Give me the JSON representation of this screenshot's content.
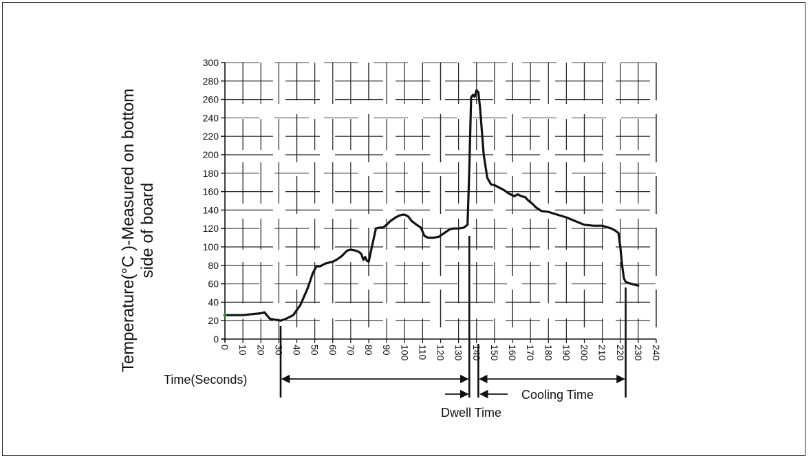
{
  "chart_data": {
    "type": "line",
    "ylabel_line1": "Temperature(°C )-Measured on bottom",
    "ylabel_line2": "side of board",
    "xlabel": "Time(Seconds)",
    "xlim": [
      0,
      240
    ],
    "ylim": [
      0,
      300
    ],
    "xticks": [
      0,
      10,
      20,
      30,
      40,
      50,
      60,
      70,
      80,
      90,
      100,
      110,
      120,
      130,
      140,
      150,
      160,
      170,
      180,
      190,
      200,
      210,
      220,
      230,
      240
    ],
    "yticks": [
      0,
      20,
      40,
      60,
      80,
      100,
      120,
      140,
      160,
      180,
      200,
      220,
      240,
      260,
      280,
      300
    ],
    "grid": true,
    "series": [
      {
        "color": "#111111",
        "x": [
          0,
          5,
          10,
          15,
          20,
          22,
          25,
          28,
          31,
          34,
          38,
          42,
          46,
          49,
          51,
          53,
          56,
          60,
          62,
          65,
          68,
          70,
          73,
          75,
          76,
          77,
          78,
          79,
          80,
          82,
          84,
          86,
          88,
          90,
          92,
          95,
          97,
          99,
          100,
          102,
          104,
          106,
          109,
          111,
          113,
          116,
          119,
          122,
          125,
          127,
          130,
          133,
          135,
          136,
          137,
          138,
          139,
          140,
          141,
          142,
          143,
          144,
          146,
          148,
          150,
          152,
          155,
          158,
          161,
          163,
          165,
          167,
          169,
          171,
          173,
          176,
          180,
          185,
          190,
          195,
          200,
          205,
          210,
          215,
          217,
          219,
          220,
          221,
          222,
          223,
          226,
          230
        ],
        "y": [
          26,
          26,
          26,
          27,
          28,
          29,
          22,
          21,
          20,
          22,
          26,
          37,
          55,
          72,
          79,
          79,
          82,
          84,
          86,
          90,
          96,
          97,
          96,
          94,
          92,
          86,
          89,
          85,
          84,
          102,
          120,
          121,
          121,
          124,
          128,
          132,
          134,
          135,
          135,
          133,
          128,
          125,
          121,
          112,
          110,
          110,
          111,
          115,
          119,
          120,
          120,
          121,
          124,
          185,
          262,
          265,
          263,
          270,
          268,
          250,
          225,
          200,
          175,
          168,
          167,
          165,
          162,
          158,
          155,
          157,
          155,
          154,
          150,
          147,
          143,
          139,
          138,
          135,
          132,
          128,
          124,
          123,
          123,
          120,
          118,
          115,
          100,
          80,
          66,
          62,
          60,
          58
        ]
      }
    ],
    "annotations": {
      "dwell_time": "Dwell Time",
      "cooling_time": "Cooling Time"
    }
  }
}
